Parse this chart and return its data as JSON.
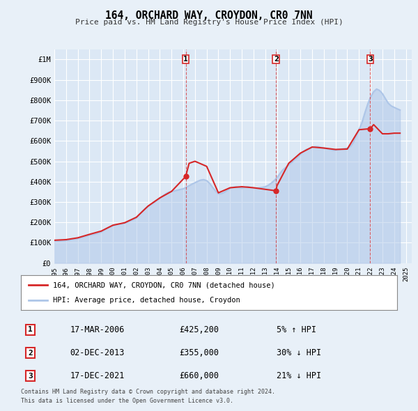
{
  "title": "164, ORCHARD WAY, CROYDON, CR0 7NN",
  "subtitle": "Price paid vs. HM Land Registry's House Price Index (HPI)",
  "hpi_label": "HPI: Average price, detached house, Croydon",
  "property_label": "164, ORCHARD WAY, CROYDON, CR0 7NN (detached house)",
  "footer1": "Contains HM Land Registry data © Crown copyright and database right 2024.",
  "footer2": "This data is licensed under the Open Government Licence v3.0.",
  "ylim": [
    0,
    1050000
  ],
  "yticks": [
    0,
    100000,
    200000,
    300000,
    400000,
    500000,
    600000,
    700000,
    800000,
    900000,
    1000000
  ],
  "ytick_labels": [
    "£0",
    "£100K",
    "£200K",
    "£300K",
    "£400K",
    "£500K",
    "£600K",
    "£700K",
    "£800K",
    "£900K",
    "£1M"
  ],
  "xlim_start": 1995.0,
  "xlim_end": 2025.5,
  "xtick_years": [
    1995,
    1996,
    1997,
    1998,
    1999,
    2000,
    2001,
    2002,
    2003,
    2004,
    2005,
    2006,
    2007,
    2008,
    2009,
    2010,
    2011,
    2012,
    2013,
    2014,
    2015,
    2016,
    2017,
    2018,
    2019,
    2020,
    2021,
    2022,
    2023,
    2024,
    2025
  ],
  "hpi_color": "#aec6e8",
  "property_color": "#d62728",
  "sale_marker_color": "#d62728",
  "bg_color": "#e8f0f8",
  "plot_bg": "#dce8f5",
  "grid_color": "#ffffff",
  "transaction_marker_color": "#d62728",
  "transactions": [
    {
      "num": 1,
      "date": "17-MAR-2006",
      "price": 425200,
      "pct": "5%",
      "dir": "↑",
      "x_year": 2006.21
    },
    {
      "num": 2,
      "date": "02-DEC-2013",
      "price": 355000,
      "pct": "30%",
      "dir": "↓",
      "x_year": 2013.92
    },
    {
      "num": 3,
      "date": "17-DEC-2021",
      "price": 660000,
      "pct": "21%",
      "dir": "↓",
      "x_year": 2021.96
    }
  ],
  "hpi_data": {
    "years": [
      1995.0,
      1995.25,
      1995.5,
      1995.75,
      1996.0,
      1996.25,
      1996.5,
      1996.75,
      1997.0,
      1997.25,
      1997.5,
      1997.75,
      1998.0,
      1998.25,
      1998.5,
      1998.75,
      1999.0,
      1999.25,
      1999.5,
      1999.75,
      2000.0,
      2000.25,
      2000.5,
      2000.75,
      2001.0,
      2001.25,
      2001.5,
      2001.75,
      2002.0,
      2002.25,
      2002.5,
      2002.75,
      2003.0,
      2003.25,
      2003.5,
      2003.75,
      2004.0,
      2004.25,
      2004.5,
      2004.75,
      2005.0,
      2005.25,
      2005.5,
      2005.75,
      2006.0,
      2006.25,
      2006.5,
      2006.75,
      2007.0,
      2007.25,
      2007.5,
      2007.75,
      2008.0,
      2008.25,
      2008.5,
      2008.75,
      2009.0,
      2009.25,
      2009.5,
      2009.75,
      2010.0,
      2010.25,
      2010.5,
      2010.75,
      2011.0,
      2011.25,
      2011.5,
      2011.75,
      2012.0,
      2012.25,
      2012.5,
      2012.75,
      2013.0,
      2013.25,
      2013.5,
      2013.75,
      2014.0,
      2014.25,
      2014.5,
      2014.75,
      2015.0,
      2015.25,
      2015.5,
      2015.75,
      2016.0,
      2016.25,
      2016.5,
      2016.75,
      2017.0,
      2017.25,
      2017.5,
      2017.75,
      2018.0,
      2018.25,
      2018.5,
      2018.75,
      2019.0,
      2019.25,
      2019.5,
      2019.75,
      2020.0,
      2020.25,
      2020.5,
      2020.75,
      2021.0,
      2021.25,
      2021.5,
      2021.75,
      2022.0,
      2022.25,
      2022.5,
      2022.75,
      2023.0,
      2023.25,
      2023.5,
      2023.75,
      2024.0,
      2024.25,
      2024.5
    ],
    "values": [
      109000,
      108000,
      108500,
      110000,
      111000,
      113000,
      116000,
      118000,
      121000,
      125000,
      129000,
      133000,
      138000,
      140000,
      143000,
      148000,
      153000,
      162000,
      171000,
      178000,
      183000,
      188000,
      191000,
      193000,
      196000,
      202000,
      208000,
      214000,
      222000,
      238000,
      254000,
      268000,
      278000,
      288000,
      298000,
      308000,
      318000,
      330000,
      340000,
      348000,
      352000,
      355000,
      358000,
      362000,
      365000,
      372000,
      380000,
      388000,
      395000,
      402000,
      408000,
      410000,
      405000,
      392000,
      372000,
      355000,
      340000,
      342000,
      348000,
      358000,
      368000,
      372000,
      375000,
      372000,
      368000,
      372000,
      375000,
      372000,
      368000,
      368000,
      370000,
      372000,
      375000,
      382000,
      392000,
      405000,
      420000,
      440000,
      458000,
      470000,
      482000,
      495000,
      508000,
      520000,
      535000,
      548000,
      558000,
      562000,
      568000,
      572000,
      572000,
      568000,
      565000,
      562000,
      558000,
      555000,
      555000,
      558000,
      560000,
      562000,
      565000,
      572000,
      592000,
      625000,
      655000,
      690000,
      738000,
      782000,
      818000,
      842000,
      855000,
      848000,
      832000,
      808000,
      785000,
      772000,
      765000,
      758000,
      752000
    ]
  },
  "property_data": {
    "years": [
      1995.0,
      1996.0,
      1997.0,
      1998.0,
      1999.0,
      2000.0,
      2001.0,
      2002.0,
      2003.0,
      2004.0,
      2005.0,
      2006.21,
      2006.5,
      2007.0,
      2008.0,
      2009.0,
      2010.0,
      2011.0,
      2012.0,
      2013.92,
      2014.0,
      2015.0,
      2016.0,
      2017.0,
      2018.0,
      2019.0,
      2020.0,
      2021.0,
      2021.96,
      2022.25,
      2022.75,
      2023.0,
      2023.5,
      2024.0,
      2024.5
    ],
    "values": [
      112000,
      115000,
      124000,
      141000,
      157000,
      186000,
      198000,
      225000,
      280000,
      320000,
      352000,
      425200,
      490000,
      500000,
      475000,
      345000,
      370000,
      375000,
      370000,
      355000,
      380000,
      490000,
      540000,
      570000,
      565000,
      558000,
      560000,
      655000,
      660000,
      680000,
      650000,
      635000,
      635000,
      638000,
      638000
    ]
  }
}
